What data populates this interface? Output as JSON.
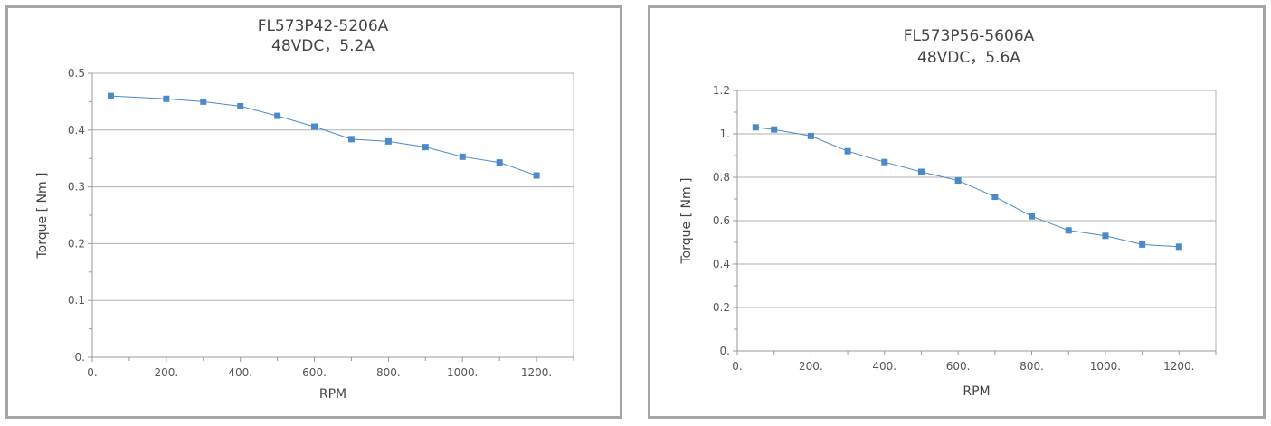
{
  "chart_data": [
    {
      "type": "line",
      "title": "FL573P42-5206A",
      "subtitle": "48VDC，5.2A",
      "xlabel": "RPM",
      "ylabel": "Torque [ Nm ]",
      "xlim": [
        0,
        1300
      ],
      "ylim": [
        0,
        0.5
      ],
      "xticks": [
        0,
        200,
        400,
        600,
        800,
        1000,
        1200
      ],
      "xtick_labels": [
        "0.",
        "200.",
        "400.",
        "600.",
        "800.",
        "1000.",
        "1200."
      ],
      "yticks": [
        0,
        0.1,
        0.2,
        0.3,
        0.4,
        0.5
      ],
      "ytick_labels": [
        "0.",
        "0.1",
        "0.2",
        "0.3",
        "0.4",
        "0.5"
      ],
      "grid": true,
      "color": "#4a8ac8",
      "x": [
        50,
        200,
        300,
        400,
        500,
        600,
        700,
        800,
        900,
        1000,
        1100,
        1200
      ],
      "y": [
        0.46,
        0.455,
        0.45,
        0.442,
        0.425,
        0.406,
        0.384,
        0.38,
        0.37,
        0.353,
        0.343,
        0.32
      ]
    },
    {
      "type": "line",
      "title": "FL573P56-5606A",
      "subtitle": "48VDC，5.6A",
      "xlabel": "RPM",
      "ylabel": "Torque [ Nm ]",
      "xlim": [
        0,
        1300
      ],
      "ylim": [
        0,
        1.2
      ],
      "xticks": [
        0,
        200,
        400,
        600,
        800,
        1000,
        1200
      ],
      "xtick_labels": [
        "0.",
        "200.",
        "400.",
        "600.",
        "800.",
        "1000.",
        "1200."
      ],
      "yticks": [
        0,
        0.2,
        0.4,
        0.6,
        0.8,
        1,
        1.2
      ],
      "ytick_labels": [
        "0.",
        "0.2",
        "0.4",
        "0.6",
        "0.8",
        "1.",
        "1.2"
      ],
      "grid": true,
      "color": "#4a8ac8",
      "x": [
        50,
        100,
        200,
        300,
        400,
        500,
        600,
        700,
        800,
        900,
        1000,
        1100,
        1200
      ],
      "y": [
        1.03,
        1.02,
        0.99,
        0.92,
        0.87,
        0.825,
        0.785,
        0.71,
        0.62,
        0.555,
        0.53,
        0.49,
        0.48
      ]
    }
  ]
}
